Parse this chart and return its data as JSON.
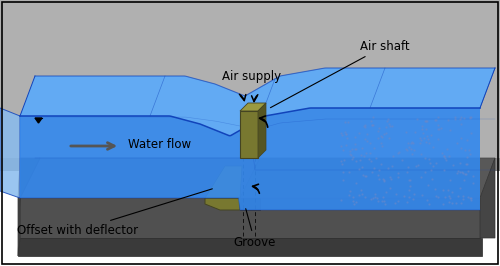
{
  "fig_width": 5.0,
  "fig_height": 2.66,
  "dpi": 100,
  "bg_color": "#ffffff",
  "wall_color": "#b0b0b0",
  "wall_dark_color": "#8a8a8a",
  "floor_top_color": "#606060",
  "floor_front_color": "#505050",
  "floor_dark_color": "#3a3a3a",
  "water_color": "#3388ee",
  "water_top_color": "#55aaff",
  "water_side_color": "#88bbee",
  "water_line_color": "#1144bb",
  "deflector_color": "#787830",
  "deflector_light": "#9a9a40",
  "deflector_dark": "#555522",
  "shaft_color": "#787830",
  "shaft_light": "#9a9a40",
  "shaft_dark": "#555522",
  "border_color": "#000000",
  "label_fontsize": 8.5,
  "labels": {
    "air_supply": "Air supply",
    "air_shaft": "Air shaft",
    "water_flow": "Water flow",
    "offset": "Offset with deflector",
    "groove": "Groove"
  }
}
